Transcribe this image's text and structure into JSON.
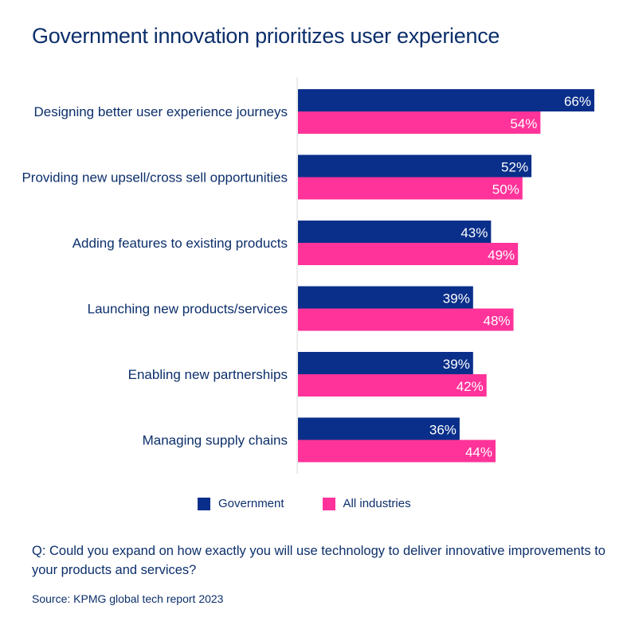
{
  "chart_data": {
    "type": "bar",
    "orientation": "horizontal",
    "title": "Government innovation prioritizes user experience",
    "categories": [
      "Designing better user experience journeys",
      "Providing new upsell/cross sell opportunities",
      "Adding features to existing products",
      "Launching new products/services",
      "Enabling new partnerships",
      "Managing supply chains"
    ],
    "series": [
      {
        "name": "Government",
        "color": "#0a2f8a",
        "values": [
          66,
          52,
          43,
          39,
          39,
          36
        ]
      },
      {
        "name": "All industries",
        "color": "#ff3399",
        "values": [
          54,
          50,
          49,
          48,
          42,
          44
        ]
      }
    ],
    "value_suffix": "%",
    "xlabel": "",
    "ylabel": "",
    "xlim": [
      0,
      66
    ],
    "grid": false,
    "legend_position": "bottom-center"
  },
  "question": "Q: Could you expand on how exactly you will use technology to deliver innovative improvements to your products and services?",
  "source": "Source: KPMG global tech report 2023"
}
